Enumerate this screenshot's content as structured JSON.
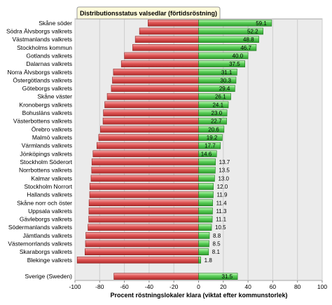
{
  "chart_data": {
    "type": "bar",
    "orientation": "horizontal",
    "title": "Distributionsstatus valsedlar (förtidsröstning)",
    "xlabel": "Procent röstningslokaler klara (viktat efter kommunstorlek)",
    "ylabel": "",
    "xlim": [
      -100,
      100
    ],
    "xticks": [
      -100,
      -80,
      -60,
      -40,
      -20,
      0,
      20,
      40,
      60,
      80,
      100
    ],
    "grid": true,
    "legend": "none",
    "categories": [
      "Skåne söder",
      "Södra Älvsborgs valkrets",
      "Västmanlands valkrets",
      "Stockholms kommun",
      "Gotlands valkrets",
      "Dalarnas valkrets",
      "Norra Älvsborgs valkrets",
      "Östergötlands valkrets",
      "Göteborgs valkrets",
      "Skåne väster",
      "Kronobergs valkrets",
      "Bohusläns valkrets",
      "Västerbottens valkrets",
      "Örebro valkrets",
      "Malmö valkrets",
      "Värmlands valkrets",
      "Jönköpings valkrets",
      "Stockholm Söderort",
      "Norrbottens valkrets",
      "Kalmar valkrets",
      "Stockholm Norrort",
      "Hallands valkrets",
      "Skåne norr och öster",
      "Uppsala valkrets",
      "Gävleborgs valkrets",
      "Södermanlands valkrets",
      "Jämtlands valkrets",
      "Västernorrlands valkrets",
      "Skaraborgs valkrets",
      "Blekinge valkrets"
    ],
    "series": [
      {
        "color": "#4cc44c",
        "data_labels": true,
        "values": [
          59.1,
          52.2,
          48.8,
          46.7,
          40.0,
          37.5,
          31.1,
          30.3,
          29.4,
          26.1,
          24.1,
          23.0,
          22.7,
          20.6,
          19.2,
          17.7,
          14.6,
          13.7,
          13.5,
          13.0,
          12.0,
          11.9,
          11.4,
          11.3,
          11.1,
          10.5,
          8.8,
          8.5,
          8.1,
          1.8
        ]
      },
      {
        "color": "#d84848",
        "data_labels": false,
        "values": [
          -40.9,
          -47.8,
          -51.2,
          -53.3,
          -60.0,
          -62.5,
          -68.9,
          -69.7,
          -70.6,
          -73.9,
          -75.9,
          -77.0,
          -77.3,
          -79.4,
          -80.8,
          -82.3,
          -85.4,
          -86.3,
          -86.5,
          -87.0,
          -88.0,
          -88.1,
          -88.6,
          -88.7,
          -88.9,
          -89.5,
          -91.2,
          -91.5,
          -91.9,
          -98.2
        ]
      }
    ],
    "total": {
      "category": "Sverige (Sweden)",
      "values": [
        31.5,
        -68.5
      ]
    }
  }
}
